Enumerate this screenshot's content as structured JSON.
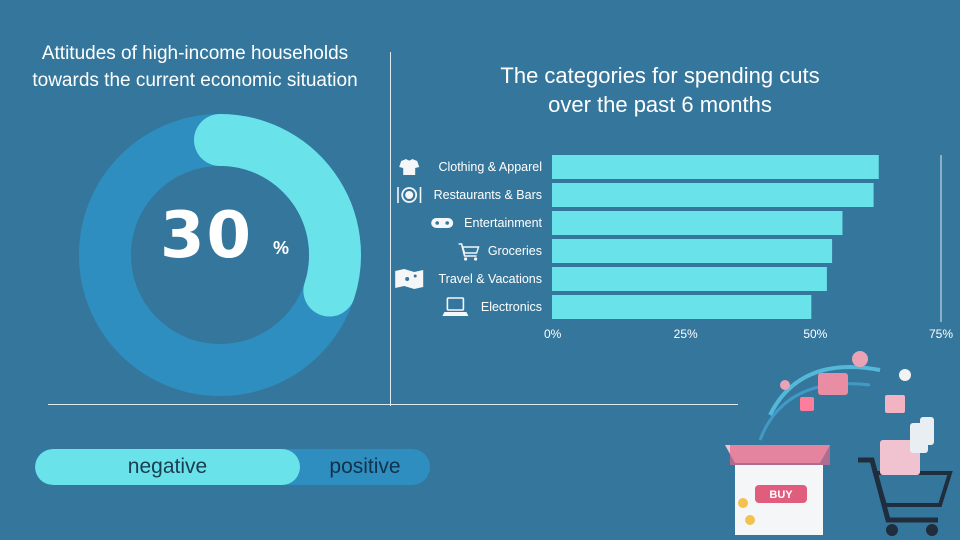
{
  "left_panel": {
    "title_line1": "Attitudes of high-income households",
    "title_line2": "towards the current economic situation",
    "donut_value": "30",
    "donut_unit": "%",
    "donut_fraction": 0.3,
    "toggle": {
      "negative_label": "negative",
      "positive_label": "positive"
    }
  },
  "colors": {
    "background": "#35779c",
    "accent": "#6ae2ea",
    "donut_track": "#2e8ec0",
    "divider": "#dfe9ef"
  },
  "chart_data": {
    "type": "bar",
    "orientation": "horizontal",
    "title_line1": "The categories for spending cuts",
    "title_line2": "over the past 6 months",
    "categories": [
      "Clothing & Apparel",
      "Restaurants & Bars",
      "Entertainment",
      "Groceries",
      "Travel & Vacations",
      "Electronics"
    ],
    "icons": [
      "tshirt-icon",
      "plate-cutlery-icon",
      "gamepad-icon",
      "shopping-cart-icon",
      "map-icon",
      "laptop-icon"
    ],
    "values": [
      63,
      62,
      56,
      54,
      53,
      50
    ],
    "value_unit": "%",
    "xlim": [
      0,
      75
    ],
    "ticks": [
      "0%",
      "25%",
      "50%",
      "75%"
    ],
    "tick_values": [
      0,
      25,
      50,
      75
    ],
    "grid": false
  },
  "decoration": {
    "illustration": "online-shopping-illustration",
    "buy_label": "BUY"
  }
}
